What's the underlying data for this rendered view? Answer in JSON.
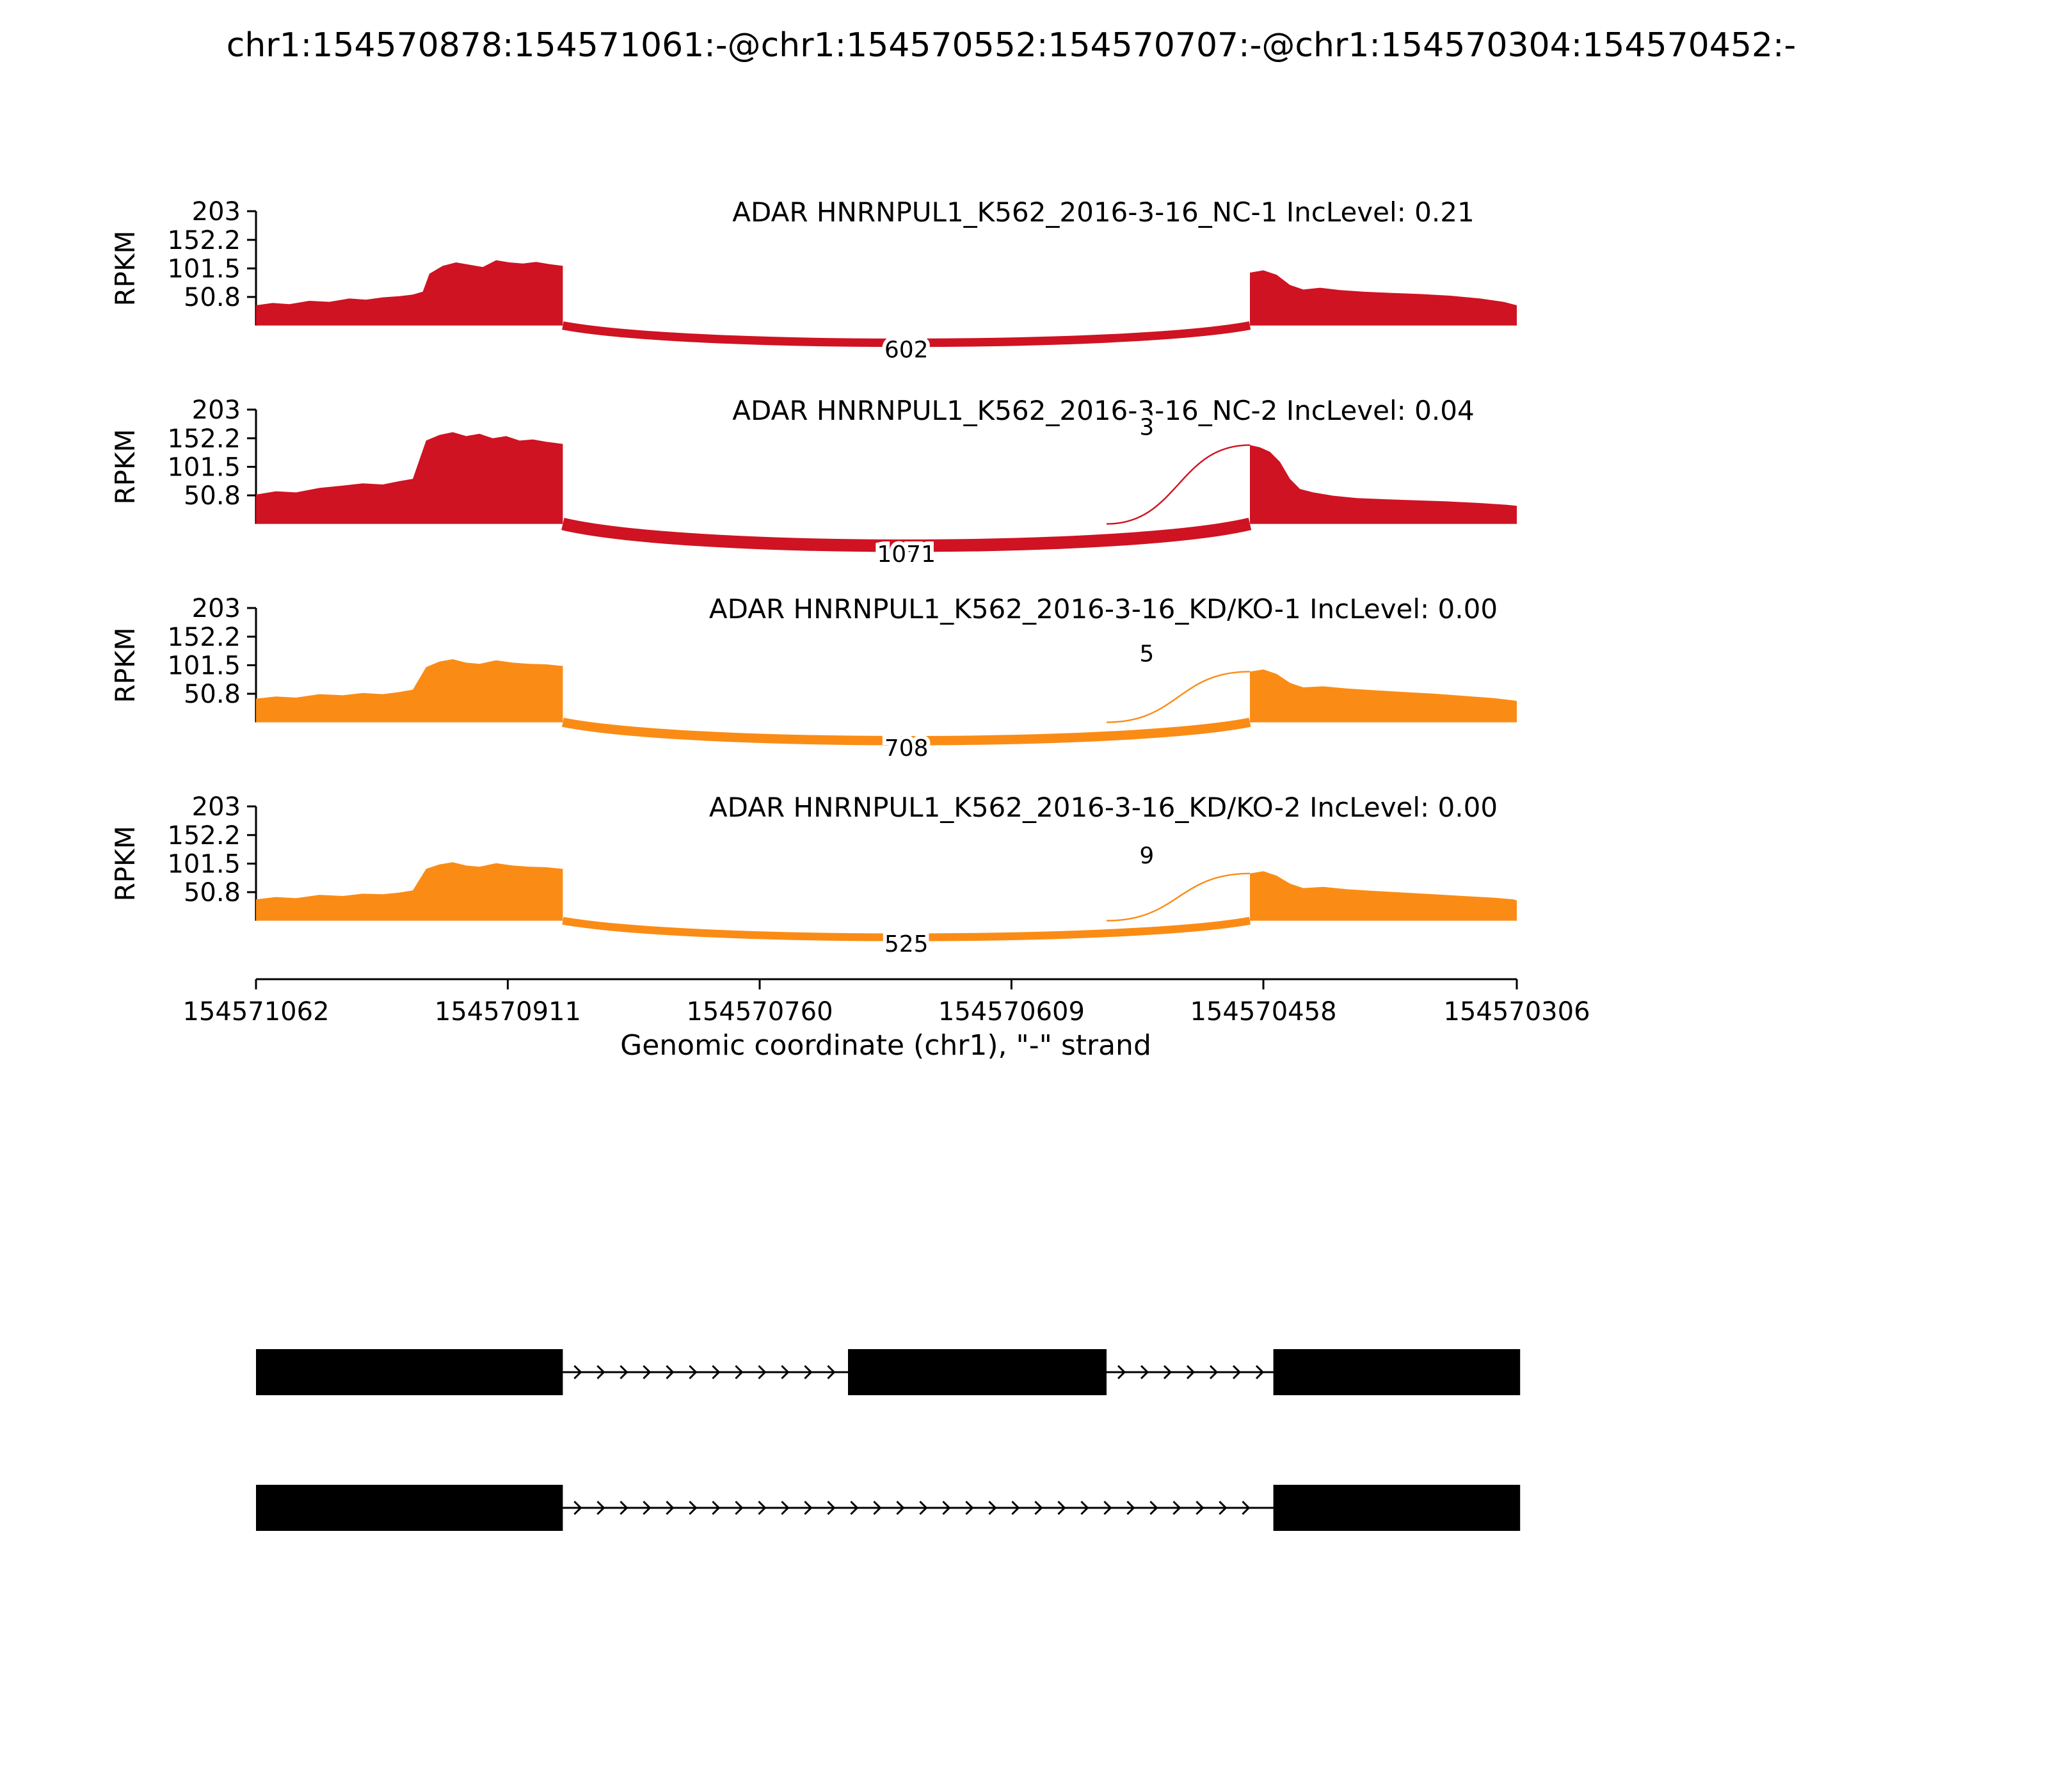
{
  "title": "chr1:154570878:154571061:-@chr1:154570552:154570707:-@chr1:154570304:154570452:-",
  "y_axis": {
    "label": "RPKM",
    "ticks": [
      203,
      152.2,
      101.5,
      50.8
    ]
  },
  "x_axis": {
    "label": "Genomic coordinate (chr1), \"-\" strand",
    "ticks": [
      154571062,
      154570911,
      154570760,
      154570609,
      154570458,
      154570306
    ],
    "domain": [
      154571062,
      154570306
    ]
  },
  "colors": {
    "nc": "#CF1322",
    "kd": "#FA8C16",
    "exon": "#000000"
  },
  "chart_data": {
    "type": "area",
    "title": "chr1:154570878:154571061:-@chr1:154570552:154570707:-@chr1:154570304:154570452:-",
    "xlabel": "Genomic coordinate (chr1), \"-\" strand",
    "ylabel": "RPKM",
    "ylim": [
      0,
      203
    ],
    "tracks": [
      {
        "label": "ADAR HNRNPUL1_K562_2016-3-16_NC-1 IncLevel: 0.21",
        "inc_level": "0.21",
        "color": "#CF1322",
        "coverage": [
          [
            [
              154571062,
              36
            ],
            [
              154571052,
              40
            ],
            [
              154571042,
              38
            ],
            [
              154571030,
              44
            ],
            [
              154571018,
              42
            ],
            [
              154571006,
              48
            ],
            [
              154570996,
              46
            ],
            [
              154570986,
              50
            ],
            [
              154570976,
              52
            ],
            [
              154570968,
              55
            ],
            [
              154570962,
              60
            ],
            [
              154570958,
              92
            ],
            [
              154570950,
              106
            ],
            [
              154570942,
              112
            ],
            [
              154570934,
              108
            ],
            [
              154570926,
              104
            ],
            [
              154570918,
              116
            ],
            [
              154570910,
              112
            ],
            [
              154570902,
              110
            ],
            [
              154570894,
              113
            ],
            [
              154570886,
              109
            ],
            [
              154570878,
              106
            ]
          ],
          [
            [
              154570466,
              94
            ],
            [
              154570458,
              98
            ],
            [
              154570450,
              90
            ],
            [
              154570442,
              72
            ],
            [
              154570434,
              64
            ],
            [
              154570424,
              67
            ],
            [
              154570412,
              63
            ],
            [
              154570398,
              60
            ],
            [
              154570382,
              58
            ],
            [
              154570364,
              56
            ],
            [
              154570346,
              53
            ],
            [
              154570328,
              48
            ],
            [
              154570314,
              42
            ],
            [
              154570306,
              36
            ]
          ]
        ],
        "junctions": [
          {
            "type": "skip",
            "from": 154570878,
            "to": 154570466,
            "count": 602
          }
        ]
      },
      {
        "label": "ADAR HNRNPUL1_K562_2016-3-16_NC-2 IncLevel: 0.04",
        "inc_level": "0.04",
        "color": "#CF1322",
        "coverage": [
          [
            [
              154571062,
              52
            ],
            [
              154571050,
              58
            ],
            [
              154571038,
              56
            ],
            [
              154571024,
              64
            ],
            [
              154571010,
              68
            ],
            [
              154570998,
              72
            ],
            [
              154570986,
              70
            ],
            [
              154570976,
              76
            ],
            [
              154570968,
              80
            ],
            [
              154570960,
              148
            ],
            [
              154570952,
              158
            ],
            [
              154570944,
              163
            ],
            [
              154570936,
              156
            ],
            [
              154570928,
              160
            ],
            [
              154570920,
              152
            ],
            [
              154570912,
              156
            ],
            [
              154570904,
              148
            ],
            [
              154570896,
              150
            ],
            [
              154570888,
              146
            ],
            [
              154570878,
              142
            ]
          ],
          [
            [
              154570466,
              140
            ],
            [
              154570460,
              136
            ],
            [
              154570454,
              128
            ],
            [
              154570448,
              110
            ],
            [
              154570442,
              80
            ],
            [
              154570436,
              62
            ],
            [
              154570428,
              56
            ],
            [
              154570416,
              50
            ],
            [
              154570402,
              46
            ],
            [
              154570386,
              44
            ],
            [
              154570368,
              42
            ],
            [
              154570348,
              40
            ],
            [
              154570328,
              37
            ],
            [
              154570312,
              34
            ],
            [
              154570306,
              32
            ]
          ]
        ],
        "junctions": [
          {
            "type": "skip",
            "from": 154570878,
            "to": 154570466,
            "count": 1071
          },
          {
            "type": "include",
            "from": 154570552,
            "to": 154570466,
            "count": 3
          }
        ]
      },
      {
        "label": "ADAR HNRNPUL1_K562_2016-3-16_KD/KO-1 IncLevel: 0.00",
        "inc_level": "0.00",
        "color": "#FA8C16",
        "coverage": [
          [
            [
              154571062,
              42
            ],
            [
              154571050,
              46
            ],
            [
              154571038,
              44
            ],
            [
              154571024,
              50
            ],
            [
              154571010,
              48
            ],
            [
              154570998,
              52
            ],
            [
              154570986,
              50
            ],
            [
              154570976,
              54
            ],
            [
              154570968,
              58
            ],
            [
              154570960,
              98
            ],
            [
              154570952,
              108
            ],
            [
              154570944,
              112
            ],
            [
              154570936,
              106
            ],
            [
              154570928,
              104
            ],
            [
              154570918,
              110
            ],
            [
              154570908,
              106
            ],
            [
              154570898,
              104
            ],
            [
              154570888,
              103
            ],
            [
              154570878,
              100
            ]
          ],
          [
            [
              154570466,
              90
            ],
            [
              154570458,
              94
            ],
            [
              154570450,
              86
            ],
            [
              154570442,
              70
            ],
            [
              154570434,
              62
            ],
            [
              154570422,
              64
            ],
            [
              154570408,
              60
            ],
            [
              154570392,
              57
            ],
            [
              154570374,
              54
            ],
            [
              154570356,
              51
            ],
            [
              154570338,
              47
            ],
            [
              154570320,
              43
            ],
            [
              154570308,
              39
            ],
            [
              154570306,
              38
            ]
          ]
        ],
        "junctions": [
          {
            "type": "skip",
            "from": 154570878,
            "to": 154570466,
            "count": 708
          },
          {
            "type": "include",
            "from": 154570552,
            "to": 154570466,
            "count": 5
          }
        ]
      },
      {
        "label": "ADAR HNRNPUL1_K562_2016-3-16_KD/KO-2 IncLevel: 0.00",
        "inc_level": "0.00",
        "color": "#FA8C16",
        "coverage": [
          [
            [
              154571062,
              38
            ],
            [
              154571050,
              42
            ],
            [
              154571038,
              40
            ],
            [
              154571024,
              46
            ],
            [
              154571010,
              44
            ],
            [
              154570998,
              48
            ],
            [
              154570986,
              47
            ],
            [
              154570976,
              50
            ],
            [
              154570968,
              54
            ],
            [
              154570960,
              92
            ],
            [
              154570952,
              100
            ],
            [
              154570944,
              104
            ],
            [
              154570936,
              98
            ],
            [
              154570928,
              96
            ],
            [
              154570918,
              102
            ],
            [
              154570908,
              98
            ],
            [
              154570898,
              96
            ],
            [
              154570888,
              95
            ],
            [
              154570878,
              92
            ]
          ],
          [
            [
              154570466,
              84
            ],
            [
              154570458,
              88
            ],
            [
              154570450,
              80
            ],
            [
              154570442,
              66
            ],
            [
              154570434,
              58
            ],
            [
              154570422,
              60
            ],
            [
              154570408,
              56
            ],
            [
              154570392,
              53
            ],
            [
              154570374,
              50
            ],
            [
              154570356,
              47
            ],
            [
              154570338,
              44
            ],
            [
              154570320,
              41
            ],
            [
              154570308,
              38
            ],
            [
              154570306,
              36
            ]
          ]
        ],
        "junctions": [
          {
            "type": "skip",
            "from": 154570878,
            "to": 154570466,
            "count": 525
          },
          {
            "type": "include",
            "from": 154570552,
            "to": 154570466,
            "count": 9
          }
        ]
      }
    ],
    "transcripts": [
      {
        "exons": [
          [
            154571062,
            154570878
          ],
          [
            154570707,
            154570552
          ],
          [
            154570452,
            154570304
          ]
        ]
      },
      {
        "exons": [
          [
            154571062,
            154570878
          ],
          [
            154570452,
            154570304
          ]
        ]
      }
    ]
  }
}
